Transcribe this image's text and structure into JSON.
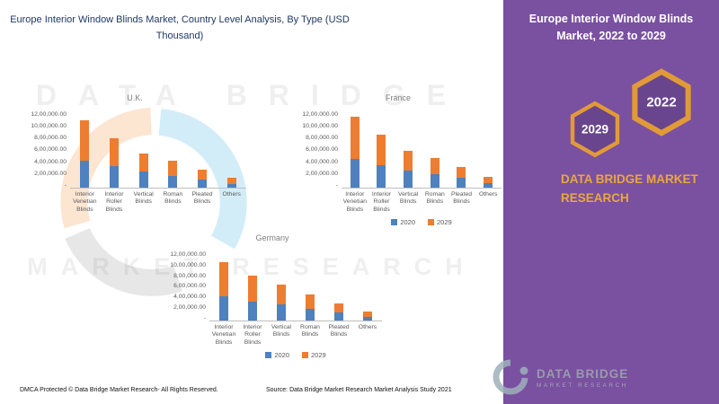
{
  "header": {
    "title": "Europe Interior Window Blinds Market, Country Level Analysis, By Type (USD Thousand)"
  },
  "sidebar": {
    "title": "Europe Interior Window Blinds Market, 2022 to 2029",
    "hexagons": [
      {
        "year": "2029"
      },
      {
        "year": "2022"
      }
    ],
    "brand": "DATA BRIDGE MARKET RESEARCH",
    "background_color": "#7A50A0",
    "accent_color": "#E9A83C",
    "hexagon_border_color": "#E19A38"
  },
  "watermark": {
    "line1": "DATA BRIDGE",
    "line2": "MARKET RESEARCH",
    "logo_title": "DATA BRIDGE",
    "logo_subtitle": "MARKET RESEARCH"
  },
  "footer": {
    "dmca": "DMCA Protected © Data Bridge Market Research- All Rights Reserved.",
    "source": "Source: Data Bridge Market Research Market Analysis Study 2021"
  },
  "chart_data": [
    {
      "type": "bar",
      "stacked": true,
      "title": "U.K.",
      "xlabel": "",
      "ylabel": "",
      "categories": [
        "Interior Venetian Blinds",
        "Interior Roller Blinds",
        "Vertical Blinds",
        "Roman Blinds",
        "Pleated Blinds",
        "Others"
      ],
      "series": [
        {
          "name": "2020",
          "color": "#4E81BD",
          "values": [
            430000,
            340000,
            250000,
            190000,
            130000,
            60000
          ]
        },
        {
          "name": "2029",
          "color": "#ED7D31",
          "values": [
            630000,
            440000,
            290000,
            230000,
            150000,
            90000
          ]
        }
      ],
      "ylim": [
        0,
        1200000
      ],
      "y_ticks": [
        "12,00,000.00",
        "10,00,000.00",
        "8,00,000.00",
        "6,00,000.00",
        "4,00,000.00",
        "2,00,000.00",
        "-"
      ],
      "grid": false,
      "legend_visible": false,
      "legend_position": "bottom"
    },
    {
      "type": "bar",
      "stacked": true,
      "title": "France",
      "xlabel": "",
      "ylabel": "",
      "categories": [
        "Interior Venetian Blinds",
        "Interior Roller Blinds",
        "Vertical Blinds",
        "Roman Blinds",
        "Pleated Blinds",
        "Others"
      ],
      "series": [
        {
          "name": "2020",
          "color": "#4E81BD",
          "values": [
            450000,
            350000,
            270000,
            210000,
            150000,
            70000
          ]
        },
        {
          "name": "2029",
          "color": "#ED7D31",
          "values": [
            660000,
            480000,
            310000,
            260000,
            170000,
            100000
          ]
        }
      ],
      "ylim": [
        0,
        1200000
      ],
      "y_ticks": [
        "12,00,000.00",
        "10,00,000.00",
        "8,00,000.00",
        "6,00,000.00",
        "4,00,000.00",
        "2,00,000.00",
        "-"
      ],
      "grid": false,
      "legend_visible": true,
      "legend_position": "bottom"
    },
    {
      "type": "bar",
      "stacked": true,
      "title": "Germany",
      "xlabel": "",
      "ylabel": "",
      "categories": [
        "Interior Venetian Blinds",
        "Interior Roller Blinds",
        "Vertical Blinds",
        "Roman Blinds",
        "Pleated Blinds",
        "Others"
      ],
      "series": [
        {
          "name": "2020",
          "color": "#4E81BD",
          "values": [
            420000,
            330000,
            280000,
            200000,
            140000,
            60000
          ]
        },
        {
          "name": "2029",
          "color": "#ED7D31",
          "values": [
            600000,
            450000,
            340000,
            250000,
            160000,
            90000
          ]
        }
      ],
      "ylim": [
        0,
        1200000
      ],
      "y_ticks": [
        "12,00,000.00",
        "10,00,000.00",
        "8,00,000.00",
        "6,00,000.00",
        "4,00,000.00",
        "2,00,000.00",
        "-"
      ],
      "grid": false,
      "legend_visible": true,
      "legend_position": "bottom"
    }
  ]
}
